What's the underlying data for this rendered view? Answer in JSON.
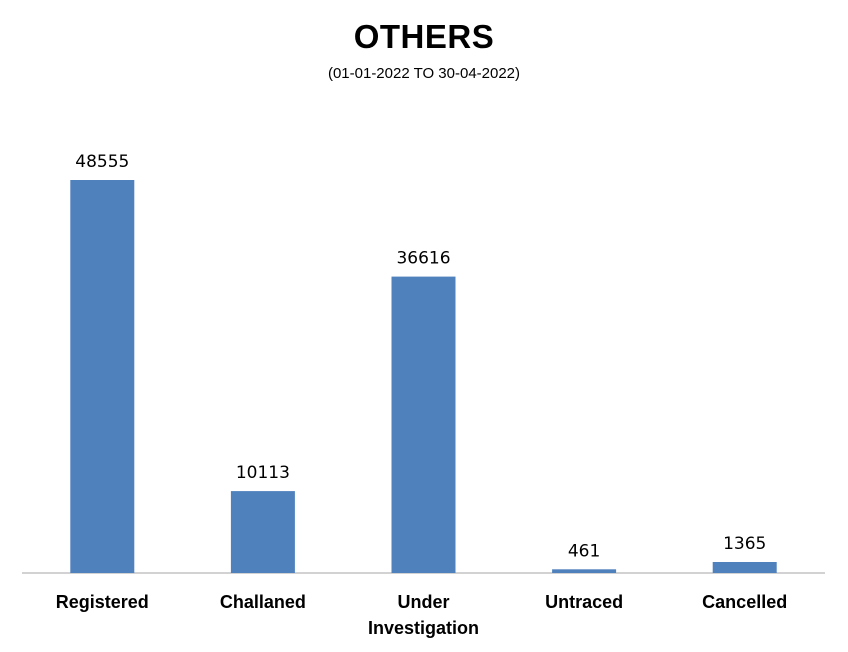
{
  "chart_data": {
    "type": "bar",
    "title": "OTHERS",
    "subtitle": "(01-01-2022 TO 30-04-2022)",
    "categories": [
      [
        "Registered"
      ],
      [
        "Challaned"
      ],
      [
        "Under",
        "Investigation"
      ],
      [
        "Untraced"
      ],
      [
        "Cancelled"
      ]
    ],
    "values": [
      48555,
      10113,
      36616,
      461,
      1365
    ],
    "value_labels": [
      "48555",
      "10113",
      "36616",
      "461",
      "1365"
    ],
    "xlabel": "",
    "ylabel": "",
    "ylim": [
      0,
      50000
    ],
    "grid": false,
    "legend": "none",
    "bar_color": "#4F81BD",
    "axis_color": "#A6A6A6"
  }
}
